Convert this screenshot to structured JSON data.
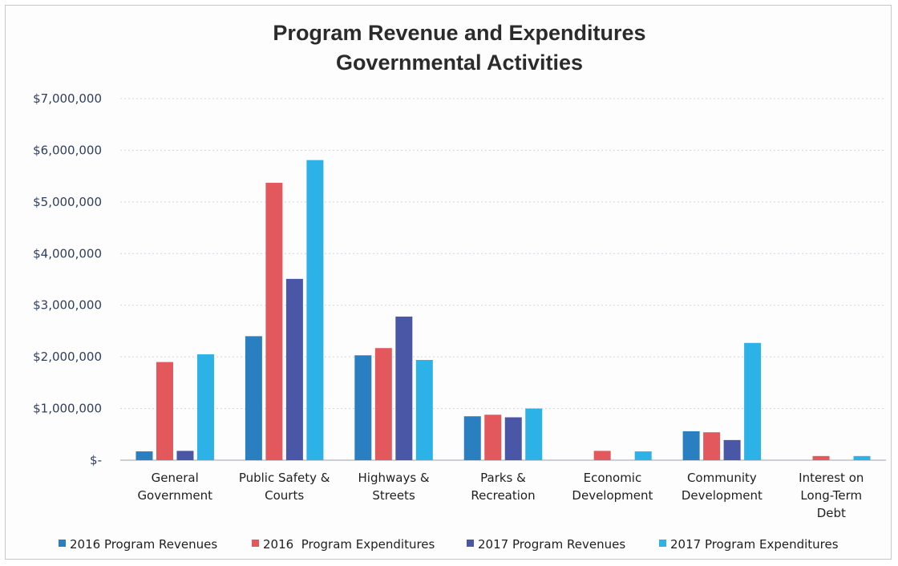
{
  "chart_data": {
    "type": "bar",
    "title_lines": [
      "Program Revenue and Expenditures",
      "Governmental Activities"
    ],
    "categories": [
      [
        "General",
        "Government"
      ],
      [
        "Public Safety &",
        "Courts"
      ],
      [
        "Highways &",
        "Streets"
      ],
      [
        "Parks &",
        "Recreation"
      ],
      [
        "Economic",
        "Development"
      ],
      [
        "Community",
        "Development"
      ],
      [
        "Interest on",
        "Long-Term",
        "Debt"
      ]
    ],
    "series": [
      {
        "name": "2016 Program Revenues",
        "color": "#2a7fc0",
        "values": [
          170000,
          2400000,
          2030000,
          850000,
          0,
          560000,
          0
        ]
      },
      {
        "name": "2016  Program Expenditures",
        "color": "#e3585c",
        "values": [
          1900000,
          5370000,
          2170000,
          880000,
          180000,
          540000,
          80000
        ]
      },
      {
        "name": "2017 Program Revenues",
        "color": "#4a56a6",
        "values": [
          180000,
          3510000,
          2780000,
          830000,
          0,
          390000,
          0
        ]
      },
      {
        "name": "2017 Program Expenditures",
        "color": "#2cb2e6",
        "values": [
          2050000,
          5810000,
          1940000,
          1000000,
          170000,
          2270000,
          80000
        ]
      }
    ],
    "ylim": [
      0,
      7000000
    ],
    "yticks": [
      0,
      1000000,
      2000000,
      3000000,
      4000000,
      5000000,
      6000000,
      7000000
    ],
    "ytick_labels": [
      "$-",
      "$1,000,000",
      "$2,000,000",
      "$3,000,000",
      "$4,000,000",
      "$5,000,000",
      "$6,000,000",
      "$7,000,000"
    ],
    "grid": true,
    "legend_position": "bottom"
  }
}
